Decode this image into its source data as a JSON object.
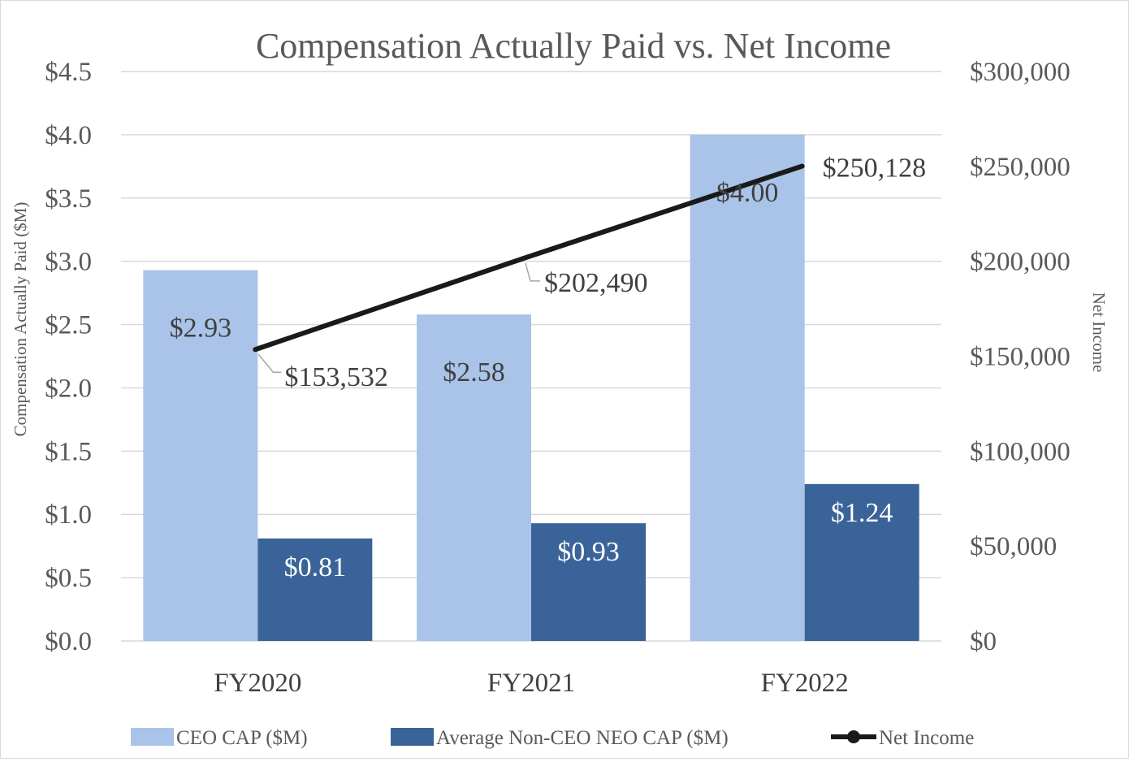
{
  "chart_data": {
    "type": "bar",
    "title": "Compensation Actually Paid vs. Net Income",
    "categories": [
      "FY2020",
      "FY2021",
      "FY2022"
    ],
    "ylabel": "Compensation Actually Paid ($M)",
    "y2label": "Net Income",
    "ylim": [
      0,
      4.5
    ],
    "y2lim": [
      0,
      300000
    ],
    "yticks": [
      "$0.0",
      "$0.5",
      "$1.0",
      "$1.5",
      "$2.0",
      "$2.5",
      "$3.0",
      "$3.5",
      "$4.0",
      "$4.5"
    ],
    "y2ticks": [
      "$0",
      "$50,000",
      "$100,000",
      "$150,000",
      "$200,000",
      "$250,000",
      "$300,000"
    ],
    "grid": true,
    "legend_position": "bottom",
    "series": [
      {
        "name": "CEO CAP ($M)",
        "kind": "bar",
        "axis": "left",
        "color": "#a9c4e8",
        "values": [
          2.93,
          2.58,
          4.0
        ],
        "labels": [
          "$2.93",
          "$2.58",
          "$4.00"
        ]
      },
      {
        "name": "Average Non-CEO NEO CAP ($M)",
        "kind": "bar",
        "axis": "left",
        "color": "#3a6499",
        "values": [
          0.81,
          0.93,
          1.24
        ],
        "labels": [
          "$0.81",
          "$0.93",
          "$1.24"
        ]
      },
      {
        "name": "Net Income",
        "kind": "line",
        "axis": "right",
        "color": "#1a1a1a",
        "values": [
          153532,
          202490,
          250128
        ],
        "labels": [
          "$153,532",
          "$202,490",
          "$250,128"
        ]
      }
    ]
  }
}
